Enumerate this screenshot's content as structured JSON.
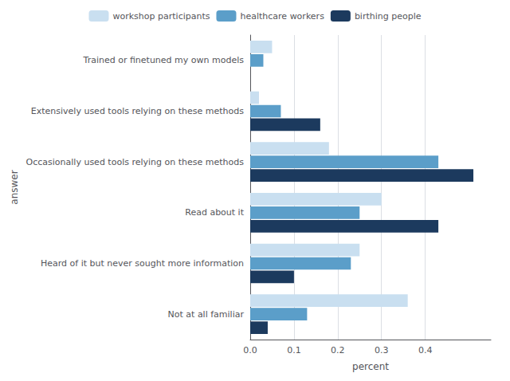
{
  "chart_data": {
    "type": "bar",
    "orientation": "horizontal",
    "categories": [
      "Trained or finetuned my own models",
      "Extensively used tools relying on these methods",
      "Occasionally used tools relying on these methods",
      "Read about it",
      "Heard of it but never sought more information",
      "Not at all familiar"
    ],
    "series": [
      {
        "name": "workshop participants",
        "color": "#c9dff0",
        "values": [
          0.05,
          0.02,
          0.18,
          0.3,
          0.25,
          0.36
        ]
      },
      {
        "name": "healthcare workers",
        "color": "#5b9ec9",
        "values": [
          0.03,
          0.07,
          0.43,
          0.25,
          0.23,
          0.13
        ]
      },
      {
        "name": "birthing people",
        "color": "#1c3a5e",
        "values": [
          0.0,
          0.16,
          0.51,
          0.43,
          0.1,
          0.04
        ]
      }
    ],
    "xlabel": "percent",
    "ylabel": "answer",
    "xlim": [
      0,
      0.55
    ],
    "xticks": [
      {
        "value": 0,
        "label": "0.0"
      },
      0.1,
      0.2,
      0.3,
      0.4
    ],
    "grid": true,
    "legend": "top"
  }
}
